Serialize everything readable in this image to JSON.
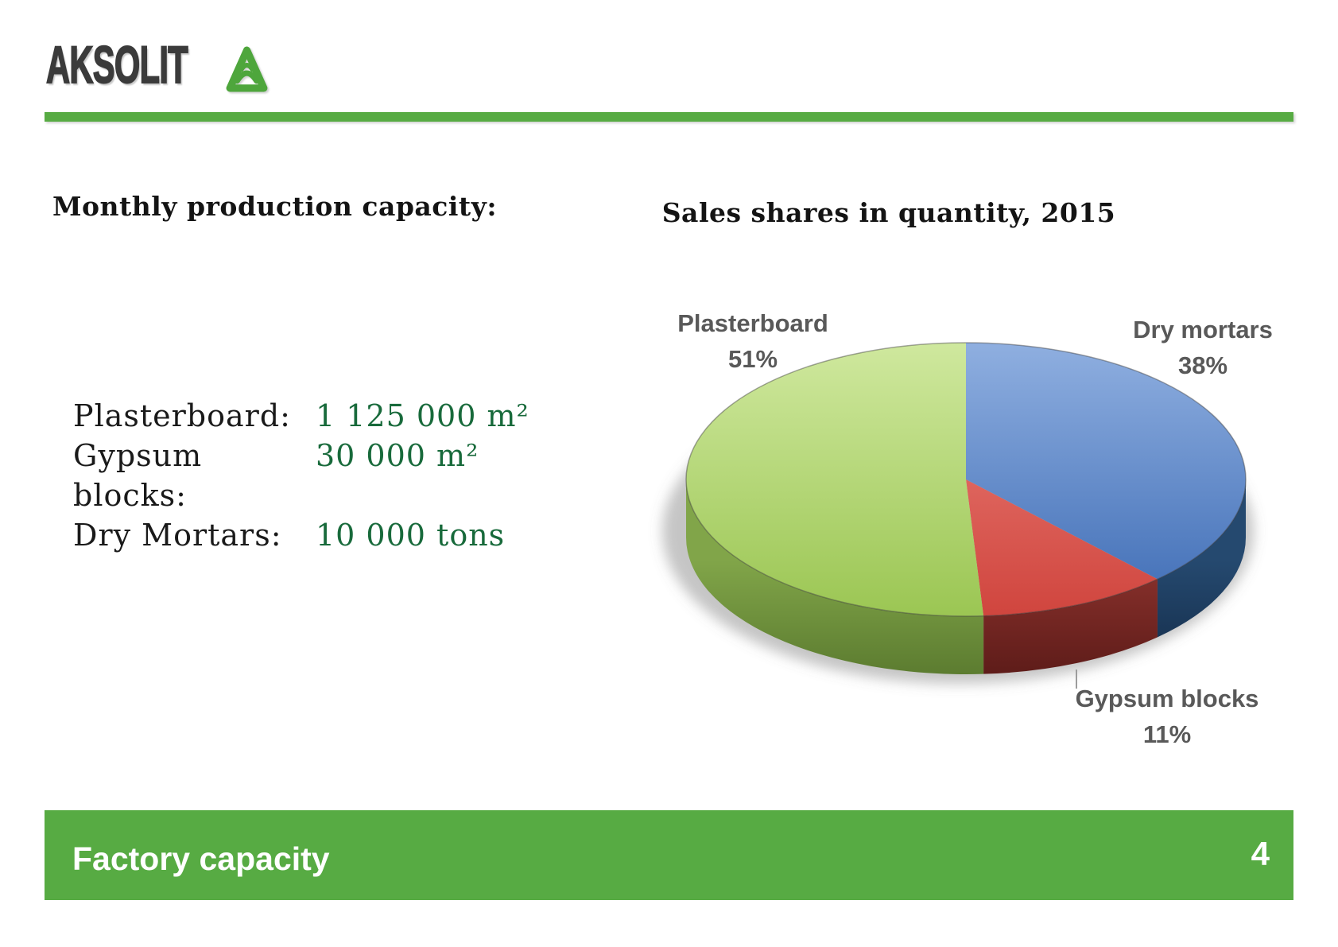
{
  "logo": {
    "text": "AKSOLIT",
    "icon": "aksolit-cone-icon"
  },
  "colors": {
    "accent_green": "#57ab43",
    "logo_green": "#4ea63c",
    "logo_text": "#3b3b3b",
    "value_green": "#186a3b",
    "chart_label_gray": "#595959",
    "footer_text": "#ffffff"
  },
  "left_panel": {
    "heading": "Monthly production capacity:",
    "items": [
      {
        "label": "Plasterboard:",
        "value": "1 125 000 m²"
      },
      {
        "label": "Gypsum blocks:",
        "value": "30 000 m²"
      },
      {
        "label": "Dry Mortars:",
        "value": "10 000 tons"
      }
    ]
  },
  "chart_data": {
    "type": "pie",
    "projection": "3d",
    "title": "Sales shares in quantity, 2015",
    "unit": "%",
    "categories": [
      "Plasterboard",
      "Dry mortars",
      "Gypsum blocks"
    ],
    "values": [
      51,
      38,
      11
    ],
    "pct_labels": [
      "51%",
      "38%",
      "11%"
    ],
    "legend": "none",
    "start_angle_deg": 0,
    "direction": "clockwise",
    "slices_clockwise_from_top": [
      {
        "label": "Dry mortars",
        "value": 38,
        "top_light": "#8fafe0",
        "top_dark": "#3e6cb5",
        "side_light": "#25496f",
        "side_dark": "#142c49"
      },
      {
        "label": "Gypsum blocks",
        "value": 11,
        "top_light": "#ec847c",
        "top_dark": "#d0453e",
        "side_light": "#8b322d",
        "side_dark": "#5e1c19"
      },
      {
        "label": "Plasterboard",
        "value": 51,
        "top_light": "#cfe89e",
        "top_dark": "#9bc653",
        "side_light": "#81a549",
        "side_dark": "#5c7c30"
      }
    ]
  },
  "footer": {
    "title": "Factory capacity",
    "page_number": "4"
  }
}
